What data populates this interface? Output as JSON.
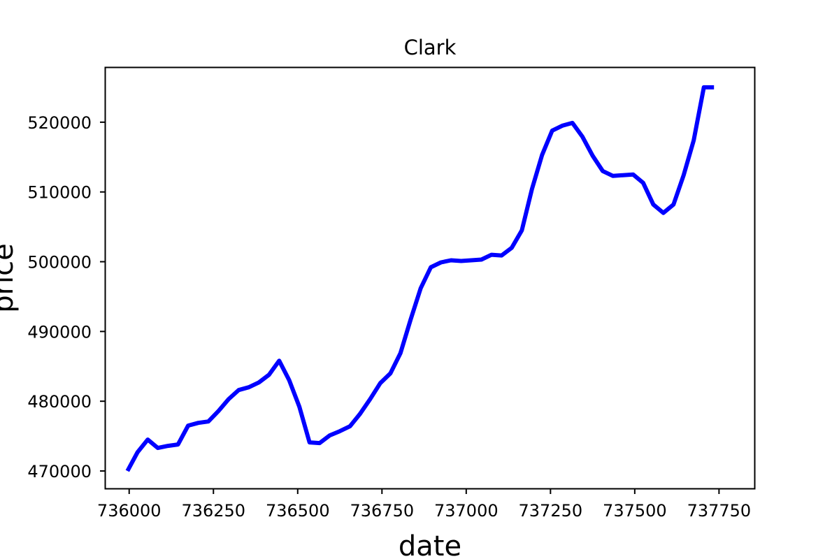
{
  "chart_data": {
    "type": "line",
    "title": "Clark",
    "xlabel": "date",
    "ylabel": "price",
    "xlim": [
      735930,
      737855
    ],
    "ylim": [
      467500,
      527800
    ],
    "grid": false,
    "legend": null,
    "xticks": [
      736000,
      736250,
      736500,
      736750,
      737000,
      737250,
      737500,
      737750
    ],
    "xtick_labels": [
      "736000",
      "736250",
      "736500",
      "736750",
      "737000",
      "737250",
      "737500",
      "737750"
    ],
    "yticks": [
      470000,
      480000,
      490000,
      500000,
      510000,
      520000
    ],
    "ytick_labels": [
      "470000",
      "480000",
      "490000",
      "500000",
      "510000",
      "520000"
    ],
    "series": [
      {
        "color": "#0000ff",
        "x": [
          735995,
          736025,
          736055,
          736085,
          736115,
          736145,
          736175,
          736205,
          736235,
          736265,
          736295,
          736325,
          736355,
          736385,
          736415,
          736445,
          736475,
          736505,
          736535,
          736565,
          736595,
          736625,
          736655,
          736685,
          736715,
          736745,
          736775,
          736805,
          736835,
          736865,
          736895,
          736925,
          736955,
          736985,
          737015,
          737045,
          737075,
          737105,
          737135,
          737165,
          737195,
          737225,
          737255,
          737285,
          737315,
          737345,
          737375,
          737405,
          737435,
          737465,
          737495,
          737525,
          737555,
          737585,
          737615,
          737645,
          737675,
          737705,
          737735
        ],
        "values": [
          470000,
          472700,
          474500,
          473300,
          473600,
          473800,
          476500,
          476900,
          477100,
          478600,
          480300,
          481600,
          482000,
          482700,
          483800,
          485800,
          483000,
          479200,
          474100,
          474000,
          475100,
          475700,
          476400,
          478200,
          480300,
          482600,
          484000,
          486900,
          491700,
          496200,
          499200,
          499900,
          500200,
          500100,
          500200,
          500300,
          501000,
          500900,
          502000,
          504500,
          510400,
          515300,
          518800,
          519500,
          519900,
          517900,
          515200,
          513000,
          512300,
          512400,
          512500,
          511300,
          508200,
          507000,
          508200,
          512400,
          517400,
          525000,
          525000
        ]
      }
    ]
  }
}
